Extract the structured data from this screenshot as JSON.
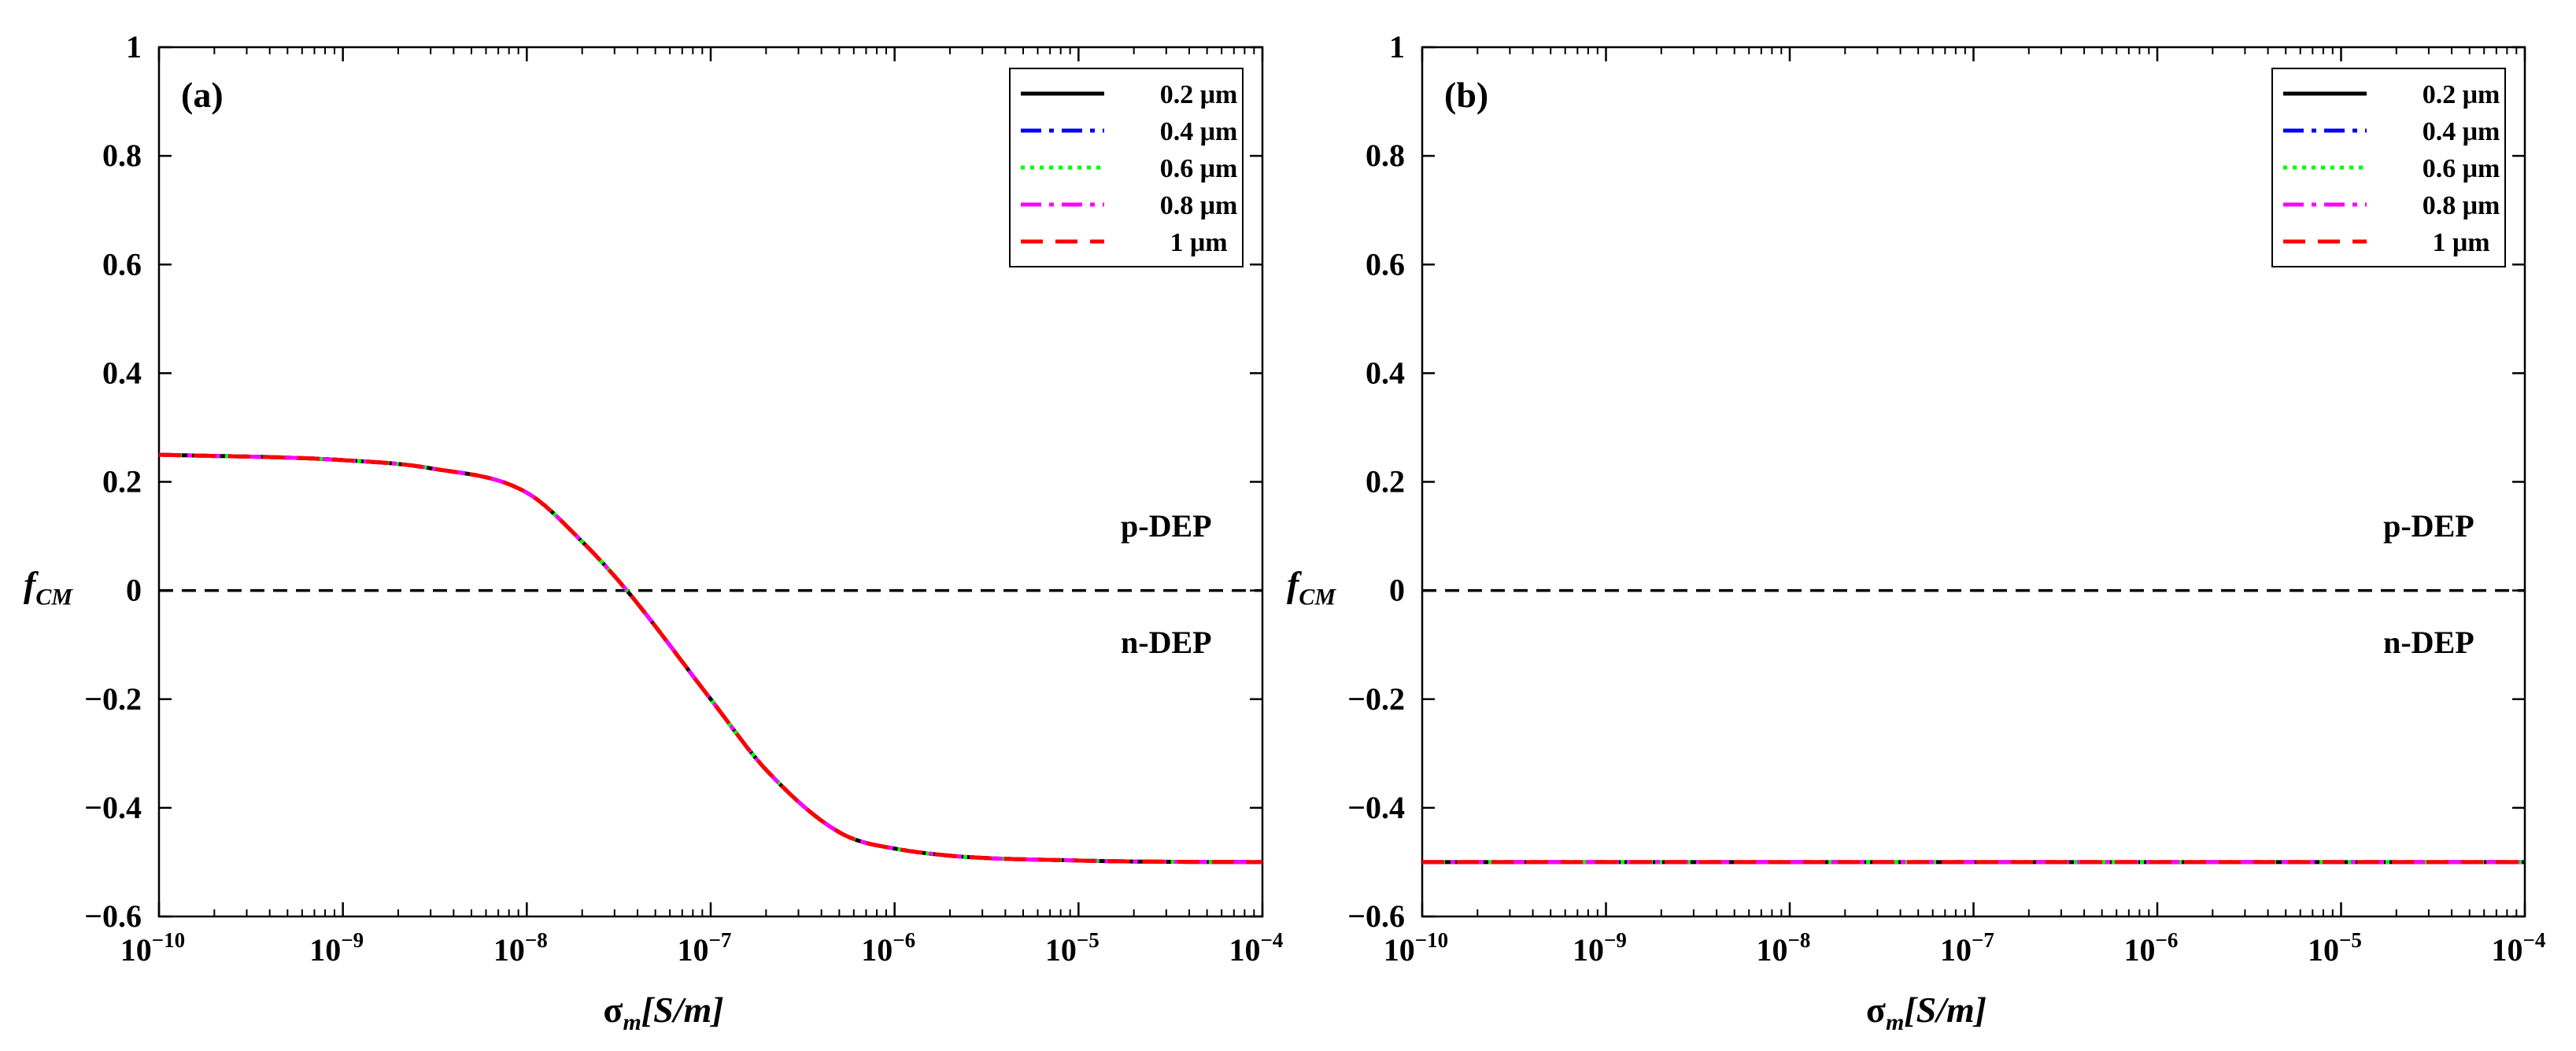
{
  "chart_data": [
    {
      "type": "line",
      "panel_label": "(a)",
      "xscale": "log",
      "x_ticks": [
        {
          "base": "10",
          "exp": "−10"
        },
        {
          "base": "10",
          "exp": "−9"
        },
        {
          "base": "10",
          "exp": "−8"
        },
        {
          "base": "10",
          "exp": "−7"
        },
        {
          "base": "10",
          "exp": "−6"
        },
        {
          "base": "10",
          "exp": "−5"
        },
        {
          "base": "10",
          "exp": "−4"
        }
      ],
      "x_tick_values": [
        1e-10,
        1e-09,
        1e-08,
        1e-07,
        1e-06,
        1e-05,
        0.0001
      ],
      "xlim": [
        1e-10,
        0.0001
      ],
      "ylim": [
        -0.6,
        1
      ],
      "y_ticks": [
        1,
        0.8,
        0.6,
        0.4,
        0.2,
        0,
        -0.2,
        -0.4,
        -0.6
      ],
      "y_tick_labels": [
        "1",
        "0.8",
        "0.6",
        "0.4",
        "0.2",
        "0",
        "−0.2",
        "−0.4",
        "−0.6"
      ],
      "xlabel": {
        "symbol": "σ",
        "sub": "m",
        "unit": "[S/m]"
      },
      "ylabel": {
        "symbol": "f",
        "sub": "CM"
      },
      "reference_line": {
        "y": 0,
        "style": "dashed",
        "color": "#000000"
      },
      "annotations": [
        {
          "text": "p-DEP",
          "x": 3e-05,
          "y": 0.12
        },
        {
          "text": "n-DEP",
          "x": 3e-05,
          "y": -0.095
        }
      ],
      "legend": {
        "position": "top-right"
      },
      "series": [
        {
          "name": "0.2 μm",
          "color": "#000000",
          "style": "solid"
        },
        {
          "name": "0.4 μm",
          "color": "#0000ff",
          "style": "dashdot"
        },
        {
          "name": "0.6 μm",
          "color": "#00ff00",
          "style": "dotted"
        },
        {
          "name": "0.8 μm",
          "color": "#ff00ff",
          "style": "dashdot"
        },
        {
          "name": "1 μm",
          "color": "#ff0000",
          "style": "dashed"
        }
      ],
      "curve": {
        "x": [
          1e-10,
          1e-09,
          3e-09,
          1e-08,
          2e-08,
          3.5e-08,
          1e-07,
          2e-07,
          5e-07,
          1e-06,
          1e-05,
          0.0001
        ],
        "y": [
          0.25,
          0.24,
          0.225,
          0.18,
          0.09,
          0.0,
          -0.2,
          -0.33,
          -0.445,
          -0.475,
          -0.497,
          -0.5
        ]
      }
    },
    {
      "type": "line",
      "panel_label": "(b)",
      "xscale": "log",
      "x_ticks": [
        {
          "base": "10",
          "exp": "−10"
        },
        {
          "base": "10",
          "exp": "−9"
        },
        {
          "base": "10",
          "exp": "−8"
        },
        {
          "base": "10",
          "exp": "−7"
        },
        {
          "base": "10",
          "exp": "−6"
        },
        {
          "base": "10",
          "exp": "−5"
        },
        {
          "base": "10",
          "exp": "−4"
        }
      ],
      "x_tick_values": [
        1e-10,
        1e-09,
        1e-08,
        1e-07,
        1e-06,
        1e-05,
        0.0001
      ],
      "xlim": [
        1e-10,
        0.0001
      ],
      "ylim": [
        -0.6,
        1
      ],
      "y_ticks": [
        1,
        0.8,
        0.6,
        0.4,
        0.2,
        0,
        -0.2,
        -0.4,
        -0.6
      ],
      "y_tick_labels": [
        "1",
        "0.8",
        "0.6",
        "0.4",
        "0.2",
        "0",
        "−0.2",
        "−0.4",
        "−0.6"
      ],
      "xlabel": {
        "symbol": "σ",
        "sub": "m",
        "unit": "[S/m]"
      },
      "ylabel": {
        "symbol": "f",
        "sub": "CM"
      },
      "reference_line": {
        "y": 0,
        "style": "dashed",
        "color": "#000000"
      },
      "annotations": [
        {
          "text": "p-DEP",
          "x": 3e-05,
          "y": 0.12
        },
        {
          "text": "n-DEP",
          "x": 3e-05,
          "y": -0.095
        }
      ],
      "legend": {
        "position": "top-right"
      },
      "series": [
        {
          "name": "0.2 μm",
          "color": "#000000",
          "style": "solid"
        },
        {
          "name": "0.4 μm",
          "color": "#0000ff",
          "style": "dashdot"
        },
        {
          "name": "0.6 μm",
          "color": "#00ff00",
          "style": "dotted"
        },
        {
          "name": "0.8 μm",
          "color": "#ff00ff",
          "style": "dashdot"
        },
        {
          "name": "1 μm",
          "color": "#ff0000",
          "style": "dashed"
        }
      ],
      "curve": {
        "x": [
          1e-10,
          0.0001
        ],
        "y": [
          -0.5,
          -0.5
        ]
      }
    }
  ]
}
